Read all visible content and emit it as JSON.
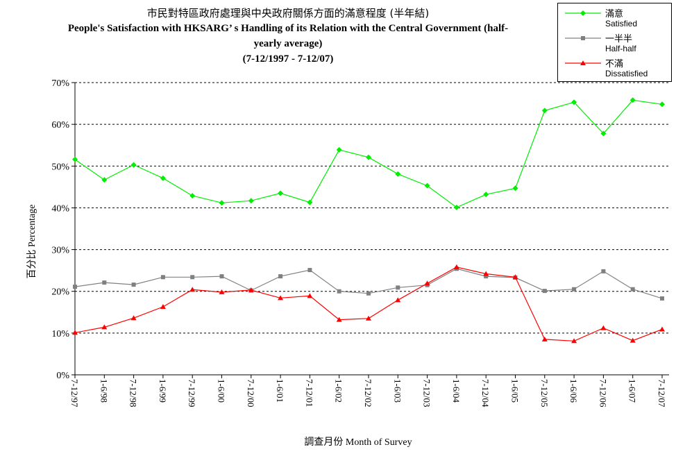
{
  "chart_data": {
    "type": "line",
    "title": "市民對特區政府處理與中央政府關係方面的滿意程度 (半年結)",
    "subtitle": "People's Satisfaction with HKSARG’  s Handling of its Relation with the Central Government (half-yearly average)",
    "subtitle_line1": "People's Satisfaction with HKSARG’  s Handling of its Relation with the Central Government (half-",
    "subtitle_line2": "yearly average)",
    "period": "(7-12/1997 - 7-12/07)",
    "xlabel": "調查月份 Month of Survey",
    "ylabel": "百分比 Percentage",
    "ylim": [
      0,
      70
    ],
    "yticks": [
      "0%",
      "10%",
      "20%",
      "30%",
      "40%",
      "50%",
      "60%",
      "70%"
    ],
    "grid": true,
    "legend_position": "top-right",
    "categories": [
      "7-12/97",
      "1-6/98",
      "7-12/98",
      "1-6/99",
      "7-12/99",
      "1-6/00",
      "7-12/00",
      "1-6/01",
      "7-12/01",
      "1-6/02",
      "7-12/02",
      "1-6/03",
      "7-12/03",
      "1-6/04",
      "7-12/04",
      "1-6/05",
      "7-12/05",
      "1-6/06",
      "7-12/06",
      "1-6/07",
      "7-12/07"
    ],
    "series": [
      {
        "name": "滿意",
        "sub": "Satisfied",
        "color": "#00ee00",
        "marker": "diamond",
        "values": [
          51.6,
          46.7,
          50.3,
          47.1,
          42.9,
          41.2,
          41.7,
          43.5,
          41.3,
          53.9,
          52.1,
          48.1,
          45.3,
          40.1,
          43.2,
          44.7,
          63.3,
          65.3,
          57.8,
          65.8,
          64.8
        ]
      },
      {
        "name": "一半半",
        "sub": "Half-half",
        "color": "#808080",
        "marker": "square",
        "values": [
          21.1,
          22.1,
          21.6,
          23.4,
          23.4,
          23.6,
          20.2,
          23.6,
          25.1,
          20.0,
          19.5,
          20.9,
          21.5,
          25.4,
          23.6,
          23.3,
          20.1,
          20.5,
          24.8,
          20.5,
          18.3
        ]
      },
      {
        "name": "不滿",
        "sub": "Dissatisfied",
        "color": "#ff0000",
        "marker": "triangle",
        "values": [
          10.1,
          11.4,
          13.6,
          16.3,
          20.4,
          19.8,
          20.3,
          18.4,
          18.9,
          13.2,
          13.5,
          17.9,
          21.9,
          25.8,
          24.2,
          23.4,
          8.5,
          8.1,
          11.2,
          8.2,
          10.9
        ]
      }
    ]
  }
}
